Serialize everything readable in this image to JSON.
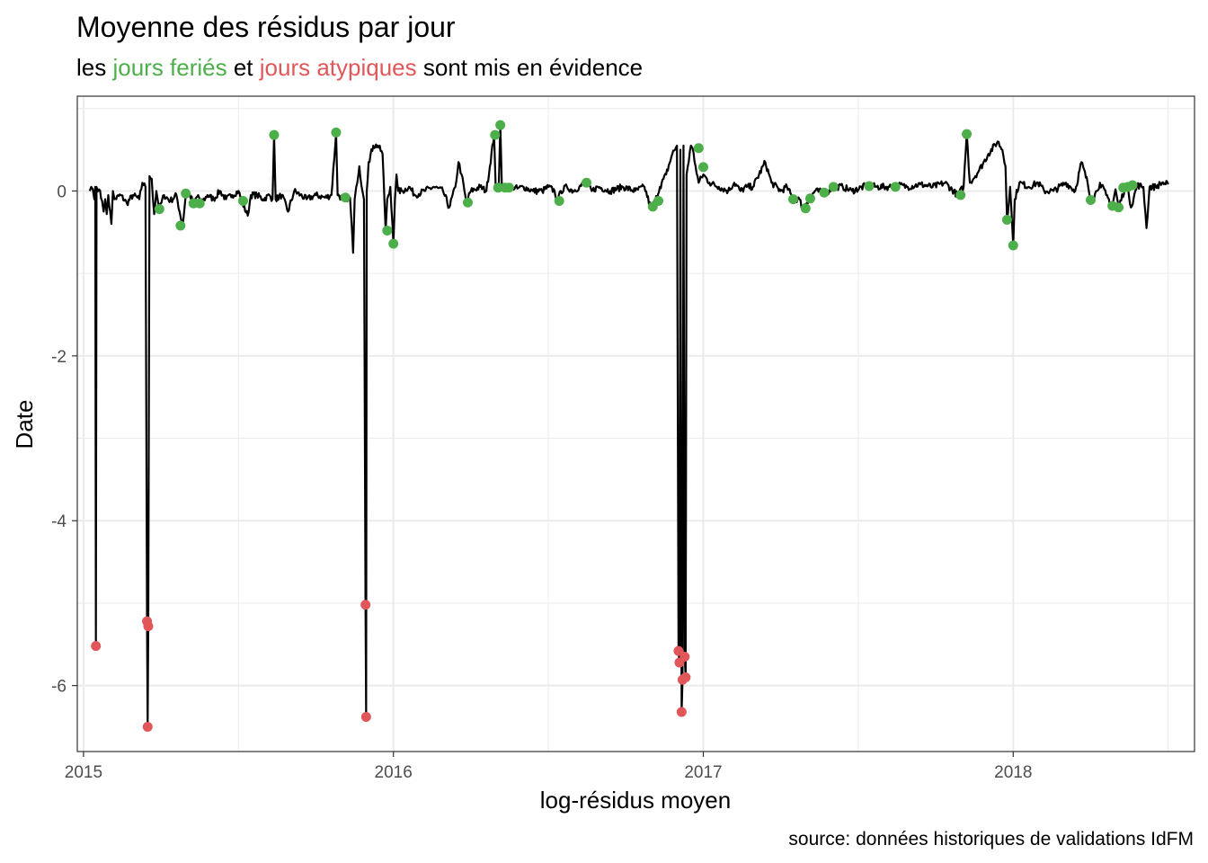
{
  "colors": {
    "holiday": "#4DAF4A",
    "atypical": "#E15759",
    "line": "#000000",
    "grid": "#EBEBEB",
    "panel_border": "#333333",
    "tick_text": "#4D4D4D"
  },
  "chart_data": {
    "type": "line",
    "title": "Moyenne des résidus par jour",
    "subtitle": {
      "parts": [
        {
          "text": "les ",
          "color": "#000000"
        },
        {
          "text": "jours feriés",
          "color": "#4DAF4A"
        },
        {
          "text": " et ",
          "color": "#000000"
        },
        {
          "text": "jours atypiques",
          "color": "#E15759"
        },
        {
          "text": " sont mis en évidence",
          "color": "#000000"
        }
      ]
    },
    "xlabel": "log-résidus moyen",
    "ylabel": "Date",
    "caption": "source: données historiques de validations IdFM",
    "xlim": [
      2014.98,
      2018.585
    ],
    "ylim": [
      -6.8,
      1.15
    ],
    "x_ticks": [
      2015,
      2016,
      2017,
      2018
    ],
    "x_tick_labels": [
      "2015",
      "2016",
      "2017",
      "2018"
    ],
    "y_ticks": [
      0,
      -2,
      -4,
      -6
    ],
    "y_tick_labels": [
      "0",
      "-2",
      "-4",
      "-6"
    ],
    "grid": true,
    "x_start": 2015.02,
    "x_end": 2018.5,
    "baseline_noise": 0.04,
    "line_points": [
      [
        2015.02,
        0.0
      ],
      [
        2015.025,
        0.05
      ],
      [
        2015.03,
        0.02
      ],
      [
        2015.035,
        -0.1
      ],
      [
        2015.038,
        0.05
      ],
      [
        2015.04,
        -5.52
      ],
      [
        2015.042,
        0.05
      ],
      [
        2015.05,
        0.02
      ],
      [
        2015.06,
        -0.12
      ],
      [
        2015.065,
        -0.25
      ],
      [
        2015.07,
        -0.1
      ],
      [
        2015.075,
        -0.28
      ],
      [
        2015.08,
        -0.05
      ],
      [
        2015.09,
        -0.4
      ],
      [
        2015.095,
        0.0
      ],
      [
        2015.1,
        -0.1
      ],
      [
        2015.12,
        -0.05
      ],
      [
        2015.14,
        -0.15
      ],
      [
        2015.16,
        -0.05
      ],
      [
        2015.18,
        -0.1
      ],
      [
        2015.19,
        0.1
      ],
      [
        2015.2,
        0.05
      ],
      [
        2015.205,
        -5.22
      ],
      [
        2015.207,
        -6.5
      ],
      [
        2015.209,
        -5.28
      ],
      [
        2015.213,
        0.18
      ],
      [
        2015.22,
        0.15
      ],
      [
        2015.228,
        -0.28
      ],
      [
        2015.235,
        0.0
      ],
      [
        2015.245,
        -0.22
      ],
      [
        2015.26,
        -0.05
      ],
      [
        2015.28,
        -0.12
      ],
      [
        2015.3,
        -0.05
      ],
      [
        2015.31,
        -0.25
      ],
      [
        2015.32,
        -0.42
      ],
      [
        2015.33,
        -0.05
      ],
      [
        2015.34,
        -0.02
      ],
      [
        2015.355,
        -0.15
      ],
      [
        2015.37,
        -0.05
      ],
      [
        2015.38,
        -0.15
      ],
      [
        2015.4,
        -0.05
      ],
      [
        2015.42,
        -0.1
      ],
      [
        2015.44,
        0.0
      ],
      [
        2015.46,
        -0.1
      ],
      [
        2015.48,
        -0.05
      ],
      [
        2015.5,
        0.0
      ],
      [
        2015.51,
        -0.12
      ],
      [
        2015.53,
        -0.3
      ],
      [
        2015.54,
        -0.05
      ],
      [
        2015.56,
        -0.05
      ],
      [
        2015.58,
        -0.1
      ],
      [
        2015.6,
        -0.05
      ],
      [
        2015.61,
        -0.1
      ],
      [
        2015.615,
        0.68
      ],
      [
        2015.62,
        -0.1
      ],
      [
        2015.64,
        -0.05
      ],
      [
        2015.66,
        -0.25
      ],
      [
        2015.68,
        0.0
      ],
      [
        2015.7,
        -0.05
      ],
      [
        2015.72,
        -0.1
      ],
      [
        2015.75,
        -0.05
      ],
      [
        2015.78,
        -0.08
      ],
      [
        2015.8,
        -0.05
      ],
      [
        2015.815,
        0.7
      ],
      [
        2015.82,
        -0.05
      ],
      [
        2015.84,
        -0.1
      ],
      [
        2015.86,
        -0.08
      ],
      [
        2015.87,
        -0.75
      ],
      [
        2015.875,
        -0.1
      ],
      [
        2015.88,
        0.05
      ],
      [
        2015.89,
        0.3
      ],
      [
        2015.9,
        0.0
      ],
      [
        2015.905,
        -0.1
      ],
      [
        2015.91,
        -5.02
      ],
      [
        2015.912,
        -6.38
      ],
      [
        2015.914,
        0.0
      ],
      [
        2015.92,
        0.35
      ],
      [
        2015.935,
        0.55
      ],
      [
        2015.95,
        0.55
      ],
      [
        2015.965,
        0.45
      ],
      [
        2015.975,
        -0.48
      ],
      [
        2015.98,
        -0.1
      ],
      [
        2015.99,
        0.05
      ],
      [
        2016.0,
        -0.64
      ],
      [
        2016.005,
        -0.1
      ],
      [
        2016.01,
        0.2
      ],
      [
        2016.015,
        0.0
      ],
      [
        2016.03,
        0.0
      ],
      [
        2016.05,
        0.05
      ],
      [
        2016.07,
        -0.05
      ],
      [
        2016.1,
        0.0
      ],
      [
        2016.13,
        0.05
      ],
      [
        2016.16,
        0.0
      ],
      [
        2016.18,
        -0.2
      ],
      [
        2016.2,
        0.05
      ],
      [
        2016.21,
        0.35
      ],
      [
        2016.22,
        0.2
      ],
      [
        2016.235,
        -0.14
      ],
      [
        2016.25,
        0.0
      ],
      [
        2016.28,
        0.05
      ],
      [
        2016.3,
        0.0
      ],
      [
        2016.325,
        0.68
      ],
      [
        2016.33,
        0.05
      ],
      [
        2016.34,
        0.05
      ],
      [
        2016.345,
        0.8
      ],
      [
        2016.35,
        0.05
      ],
      [
        2016.36,
        0.03
      ],
      [
        2016.37,
        0.05
      ],
      [
        2016.385,
        0.05
      ],
      [
        2016.4,
        0.03
      ],
      [
        2016.42,
        0.05
      ],
      [
        2016.45,
        0.0
      ],
      [
        2016.48,
        0.0
      ],
      [
        2016.5,
        0.05
      ],
      [
        2016.52,
        0.0
      ],
      [
        2016.53,
        -0.14
      ],
      [
        2016.54,
        0.0
      ],
      [
        2016.56,
        0.05
      ],
      [
        2016.58,
        0.0
      ],
      [
        2016.6,
        0.05
      ],
      [
        2016.62,
        0.1
      ],
      [
        2016.64,
        0.0
      ],
      [
        2016.66,
        0.05
      ],
      [
        2016.7,
        0.0
      ],
      [
        2016.74,
        0.05
      ],
      [
        2016.78,
        0.0
      ],
      [
        2016.81,
        0.05
      ],
      [
        2016.83,
        -0.2
      ],
      [
        2016.845,
        -0.12
      ],
      [
        2016.86,
        0.05
      ],
      [
        2016.88,
        0.2
      ],
      [
        2016.9,
        0.45
      ],
      [
        2016.915,
        0.55
      ],
      [
        2016.92,
        -5.58
      ],
      [
        2016.923,
        -5.72
      ],
      [
        2016.926,
        0.5
      ],
      [
        2016.93,
        -6.32
      ],
      [
        2016.933,
        -5.93
      ],
      [
        2016.936,
        0.55
      ],
      [
        2016.94,
        -5.65
      ],
      [
        2016.943,
        -5.9
      ],
      [
        2016.946,
        0.2
      ],
      [
        2016.95,
        0.3
      ],
      [
        2016.96,
        0.55
      ],
      [
        2016.965,
        0.52
      ],
      [
        2016.975,
        0.3
      ],
      [
        2016.985,
        0.1
      ],
      [
        2017.0,
        0.2
      ],
      [
        2017.02,
        0.1
      ],
      [
        2017.05,
        0.05
      ],
      [
        2017.08,
        0.0
      ],
      [
        2017.1,
        0.1
      ],
      [
        2017.12,
        0.0
      ],
      [
        2017.14,
        0.05
      ],
      [
        2017.16,
        0.05
      ],
      [
        2017.2,
        0.35
      ],
      [
        2017.22,
        0.1
      ],
      [
        2017.25,
        0.0
      ],
      [
        2017.27,
        0.05
      ],
      [
        2017.29,
        -0.1
      ],
      [
        2017.31,
        -0.1
      ],
      [
        2017.32,
        -0.2
      ],
      [
        2017.34,
        -0.1
      ],
      [
        2017.36,
        0.0
      ],
      [
        2017.4,
        -0.02
      ],
      [
        2017.42,
        0.05
      ],
      [
        2017.45,
        0.05
      ],
      [
        2017.48,
        0.0
      ],
      [
        2017.53,
        0.07
      ],
      [
        2017.56,
        0.05
      ],
      [
        2017.6,
        0.05
      ],
      [
        2017.63,
        0.07
      ],
      [
        2017.66,
        0.05
      ],
      [
        2017.7,
        0.08
      ],
      [
        2017.74,
        0.05
      ],
      [
        2017.78,
        0.1
      ],
      [
        2017.82,
        -0.05
      ],
      [
        2017.84,
        0.05
      ],
      [
        2017.85,
        0.7
      ],
      [
        2017.86,
        0.1
      ],
      [
        2017.89,
        0.25
      ],
      [
        2017.92,
        0.45
      ],
      [
        2017.95,
        0.6
      ],
      [
        2017.965,
        0.5
      ],
      [
        2017.975,
        0.3
      ],
      [
        2017.98,
        -0.35
      ],
      [
        2017.99,
        0.05
      ],
      [
        2018.0,
        -0.66
      ],
      [
        2018.005,
        -0.1
      ],
      [
        2018.02,
        0.1
      ],
      [
        2018.05,
        0.05
      ],
      [
        2018.08,
        0.1
      ],
      [
        2018.1,
        0.0
      ],
      [
        2018.13,
        0.0
      ],
      [
        2018.17,
        0.1
      ],
      [
        2018.2,
        0.0
      ],
      [
        2018.22,
        0.35
      ],
      [
        2018.24,
        0.1
      ],
      [
        2018.25,
        -0.12
      ],
      [
        2018.27,
        0.0
      ],
      [
        2018.28,
        0.1
      ],
      [
        2018.3,
        -0.05
      ],
      [
        2018.32,
        -0.18
      ],
      [
        2018.33,
        0.02
      ],
      [
        2018.34,
        -0.2
      ],
      [
        2018.36,
        0.03
      ],
      [
        2018.37,
        0.05
      ],
      [
        2018.38,
        -0.2
      ],
      [
        2018.4,
        0.07
      ],
      [
        2018.42,
        0.05
      ],
      [
        2018.43,
        -0.45
      ],
      [
        2018.44,
        0.05
      ],
      [
        2018.46,
        0.05
      ],
      [
        2018.48,
        0.1
      ],
      [
        2018.5,
        0.08
      ]
    ],
    "holiday_points": [
      [
        2015.245,
        -0.22
      ],
      [
        2015.313,
        -0.42
      ],
      [
        2015.33,
        -0.03
      ],
      [
        2015.355,
        -0.15
      ],
      [
        2015.375,
        -0.15
      ],
      [
        2015.515,
        -0.12
      ],
      [
        2015.615,
        0.68
      ],
      [
        2015.815,
        0.71
      ],
      [
        2015.845,
        -0.08
      ],
      [
        2015.98,
        -0.48
      ],
      [
        2016.0,
        -0.64
      ],
      [
        2016.24,
        -0.14
      ],
      [
        2016.328,
        0.68
      ],
      [
        2016.345,
        0.8
      ],
      [
        2016.338,
        0.04
      ],
      [
        2016.36,
        0.04
      ],
      [
        2016.373,
        0.04
      ],
      [
        2016.535,
        -0.12
      ],
      [
        2016.623,
        0.1
      ],
      [
        2016.837,
        -0.19
      ],
      [
        2016.855,
        -0.12
      ],
      [
        2016.985,
        0.52
      ],
      [
        2017.0,
        0.29
      ],
      [
        2017.29,
        -0.1
      ],
      [
        2017.33,
        -0.21
      ],
      [
        2017.345,
        -0.09
      ],
      [
        2017.39,
        -0.02
      ],
      [
        2017.42,
        0.05
      ],
      [
        2017.535,
        0.06
      ],
      [
        2017.62,
        0.05
      ],
      [
        2017.83,
        -0.05
      ],
      [
        2017.85,
        0.69
      ],
      [
        2017.98,
        -0.35
      ],
      [
        2018.0,
        -0.66
      ],
      [
        2018.25,
        -0.11
      ],
      [
        2018.32,
        -0.18
      ],
      [
        2018.34,
        -0.2
      ],
      [
        2018.355,
        0.04
      ],
      [
        2018.37,
        0.05
      ],
      [
        2018.385,
        0.07
      ]
    ],
    "atypical_points": [
      [
        2015.04,
        -5.52
      ],
      [
        2015.205,
        -5.22
      ],
      [
        2015.207,
        -6.5
      ],
      [
        2015.209,
        -5.28
      ],
      [
        2015.91,
        -5.02
      ],
      [
        2015.912,
        -6.38
      ],
      [
        2016.92,
        -5.58
      ],
      [
        2016.923,
        -5.72
      ],
      [
        2016.93,
        -6.32
      ],
      [
        2016.933,
        -5.93
      ],
      [
        2016.94,
        -5.65
      ],
      [
        2016.943,
        -5.9
      ]
    ]
  }
}
